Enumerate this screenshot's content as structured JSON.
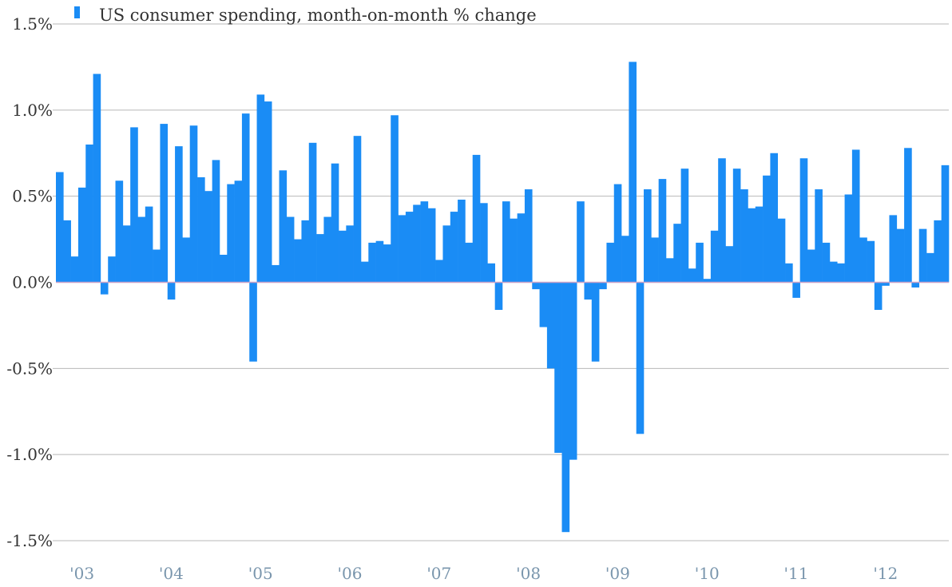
{
  "chart_data": {
    "type": "bar",
    "title": "",
    "xlabel": "",
    "ylabel": "",
    "ylim": [
      -1.5,
      1.5
    ],
    "y_ticks": [
      {
        "value": 1.5,
        "label": "1.5%"
      },
      {
        "value": 1.0,
        "label": "1.0%"
      },
      {
        "value": 0.5,
        "label": "0.5%"
      },
      {
        "value": 0.0,
        "label": "0.0%"
      },
      {
        "value": -0.5,
        "label": "-0.5%"
      },
      {
        "value": -1.0,
        "label": "-1.0%"
      },
      {
        "value": -1.5,
        "label": "-1.5%"
      }
    ],
    "x_ticks": [
      {
        "label": "'03",
        "month_index": 3
      },
      {
        "label": "'04",
        "month_index": 15
      },
      {
        "label": "'05",
        "month_index": 27
      },
      {
        "label": "'06",
        "month_index": 39
      },
      {
        "label": "'07",
        "month_index": 51
      },
      {
        "label": "'08",
        "month_index": 63
      },
      {
        "label": "'09",
        "month_index": 75
      },
      {
        "label": "'10",
        "month_index": 87
      },
      {
        "label": "'11",
        "month_index": 99
      },
      {
        "label": "'12",
        "month_index": 111
      }
    ],
    "grid": true,
    "legend": {
      "position": "top-left"
    },
    "colors": {
      "bar": "#1a8cf5",
      "grid": "#b8b8b8",
      "zero": "#c8a2c8",
      "axis_text": "#333333",
      "x_text": "#7a96ad"
    },
    "series": [
      {
        "name": "US consumer spending, month-on-month % change",
        "values": [
          0.64,
          0.36,
          0.15,
          0.55,
          0.8,
          1.21,
          -0.07,
          0.15,
          0.59,
          0.33,
          0.9,
          0.38,
          0.44,
          0.19,
          0.92,
          -0.1,
          0.79,
          0.26,
          0.91,
          0.61,
          0.53,
          0.71,
          0.16,
          0.57,
          0.59,
          0.98,
          -0.46,
          1.09,
          1.05,
          0.1,
          0.65,
          0.38,
          0.25,
          0.36,
          0.81,
          0.28,
          0.38,
          0.69,
          0.3,
          0.33,
          0.85,
          0.12,
          0.23,
          0.24,
          0.22,
          0.97,
          0.39,
          0.41,
          0.45,
          0.47,
          0.43,
          0.13,
          0.33,
          0.41,
          0.48,
          0.23,
          0.74,
          0.46,
          0.11,
          -0.16,
          0.47,
          0.37,
          0.4,
          0.54,
          -0.04,
          -0.26,
          -0.5,
          -0.99,
          -1.45,
          -1.03,
          0.47,
          -0.1,
          -0.46,
          -0.04,
          0.23,
          0.57,
          0.27,
          1.28,
          -0.88,
          0.54,
          0.26,
          0.6,
          0.14,
          0.34,
          0.66,
          0.08,
          0.23,
          0.02,
          0.3,
          0.72,
          0.21,
          0.66,
          0.54,
          0.43,
          0.44,
          0.62,
          0.75,
          0.37,
          0.11,
          -0.09,
          0.72,
          0.19,
          0.54,
          0.23,
          0.12,
          0.11,
          0.51,
          0.77,
          0.26,
          0.24,
          -0.16,
          -0.02,
          0.39,
          0.31,
          0.78,
          -0.03,
          0.31,
          0.17,
          0.36,
          0.68
        ]
      }
    ]
  }
}
